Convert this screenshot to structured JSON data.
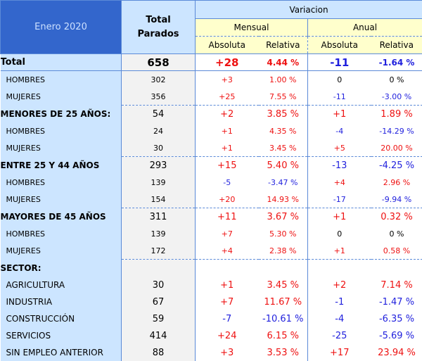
{
  "header": {
    "period": "Enero 2020",
    "total_label_1": "Total",
    "total_label_2": "Parados",
    "variacion": "Variacion",
    "mensual": "Mensual",
    "anual": "Anual",
    "absoluta": "Absoluta",
    "relativa": "Relativa"
  },
  "colors": {
    "positive": "#ee1111",
    "negative": "#1f1fdd",
    "header": "#3366cc",
    "label_bg": "#cce5ff"
  },
  "rows": [
    {
      "type": "total",
      "label": "Total",
      "total": "658",
      "m_abs": "+28",
      "m_rel": "4.44 %",
      "a_abs": "-11",
      "a_rel": "-1.64 %"
    },
    {
      "type": "sub",
      "label": "HOMBRES",
      "total": "302",
      "m_abs": "+3",
      "m_rel": "1.00 %",
      "a_abs": "0",
      "a_rel": "0 %"
    },
    {
      "type": "sub",
      "label": "MUJERES",
      "total": "356",
      "m_abs": "+25",
      "m_rel": "7.55 %",
      "a_abs": "-11",
      "a_rel": "-3.00 %"
    },
    {
      "type": "group",
      "label": "MENORES DE 25 AÑOS:",
      "total": "54",
      "m_abs": "+2",
      "m_rel": "3.85 %",
      "a_abs": "+1",
      "a_rel": "1.89 %"
    },
    {
      "type": "sub",
      "label": "HOMBRES",
      "total": "24",
      "m_abs": "+1",
      "m_rel": "4.35 %",
      "a_abs": "-4",
      "a_rel": "-14.29 %"
    },
    {
      "type": "sub",
      "label": "MUJERES",
      "total": "30",
      "m_abs": "+1",
      "m_rel": "3.45 %",
      "a_abs": "+5",
      "a_rel": "20.00 %"
    },
    {
      "type": "group",
      "label": "ENTRE 25 Y 44 AÑOS",
      "total": "293",
      "m_abs": "+15",
      "m_rel": "5.40 %",
      "a_abs": "-13",
      "a_rel": "-4.25 %"
    },
    {
      "type": "sub",
      "label": "HOMBRES",
      "total": "139",
      "m_abs": "-5",
      "m_rel": "-3.47 %",
      "a_abs": "+4",
      "a_rel": "2.96 %"
    },
    {
      "type": "sub",
      "label": "MUJERES",
      "total": "154",
      "m_abs": "+20",
      "m_rel": "14.93 %",
      "a_abs": "-17",
      "a_rel": "-9.94 %"
    },
    {
      "type": "group",
      "label": "MAYORES DE 45 AÑOS",
      "total": "311",
      "m_abs": "+11",
      "m_rel": "3.67 %",
      "a_abs": "+1",
      "a_rel": "0.32 %"
    },
    {
      "type": "sub",
      "label": "HOMBRES",
      "total": "139",
      "m_abs": "+7",
      "m_rel": "5.30 %",
      "a_abs": "0",
      "a_rel": "0 %"
    },
    {
      "type": "sub",
      "label": "MUJERES",
      "total": "172",
      "m_abs": "+4",
      "m_rel": "2.38 %",
      "a_abs": "+1",
      "a_rel": "0.58 %"
    },
    {
      "type": "group",
      "label": "SECTOR:",
      "total": "",
      "m_abs": "",
      "m_rel": "",
      "a_abs": "",
      "a_rel": ""
    },
    {
      "type": "sector",
      "label": "AGRICULTURA",
      "total": "30",
      "m_abs": "+1",
      "m_rel": "3.45 %",
      "a_abs": "+2",
      "a_rel": "7.14 %"
    },
    {
      "type": "sector",
      "label": "INDUSTRIA",
      "total": "67",
      "m_abs": "+7",
      "m_rel": "11.67 %",
      "a_abs": "-1",
      "a_rel": "-1.47 %"
    },
    {
      "type": "sector",
      "label": "CONSTRUCCIÓN",
      "total": "59",
      "m_abs": "-7",
      "m_rel": "-10.61 %",
      "a_abs": "-4",
      "a_rel": "-6.35 %"
    },
    {
      "type": "sector",
      "label": "SERVICIOS",
      "total": "414",
      "m_abs": "+24",
      "m_rel": "6.15 %",
      "a_abs": "-25",
      "a_rel": "-5.69 %"
    },
    {
      "type": "sector",
      "label": "SIN EMPLEO ANTERIOR",
      "total": "88",
      "m_abs": "+3",
      "m_rel": "3.53 %",
      "a_abs": "+17",
      "a_rel": "23.94 %"
    }
  ]
}
